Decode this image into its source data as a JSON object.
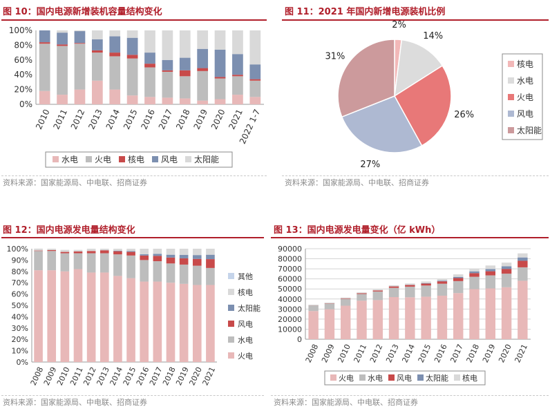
{
  "colors": {
    "title": "#b01e2a",
    "source": "#8a8a8a",
    "hydro": "#bdbdbd",
    "thermal": "#e8b8b8",
    "nuclear": "#c84a4a",
    "wind": "#7c8fb0",
    "solar": "#d9d9d9",
    "other": "#c5d4ea"
  },
  "charts": [
    {
      "title": "图 10：国内电源新增装机容量结构变化",
      "source": "资料来源：国家能源局、中电联、招商证券"
    },
    {
      "title": "图 11：2021 年国内新增电源装机比例",
      "source": "资料来源：国家能源局、中电联、招商证券"
    },
    {
      "title": "图 12：国内电源发电量结构变化",
      "source": "资料来源：国家能源局、中电联、招商证券"
    },
    {
      "title": "图 13：国内电源发电量变化（亿 kWh）",
      "source": "资料来源：国家能源局、中电联、招商证券"
    }
  ],
  "chart_data": [
    {
      "type": "bar",
      "stacked": true,
      "categories": [
        "2010",
        "2011",
        "2012",
        "2013",
        "2014",
        "2015",
        "2016",
        "2017",
        "2018",
        "2019",
        "2020",
        "2021",
        "2022 1-7"
      ],
      "ylim": [
        0,
        100
      ],
      "yticks": [
        "0%",
        "20%",
        "40%",
        "60%",
        "80%",
        "100%"
      ],
      "legend_position": "bottom",
      "series": [
        {
          "name": "水电",
          "color": "#e8b8b8",
          "values": [
            18,
            13,
            20,
            32,
            20,
            12,
            10,
            9,
            8,
            5,
            7,
            13,
            10
          ]
        },
        {
          "name": "火电",
          "color": "#bdbdbd",
          "values": [
            64,
            66,
            62,
            38,
            45,
            50,
            40,
            35,
            30,
            40,
            28,
            25,
            22
          ]
        },
        {
          "name": "核电",
          "color": "#c84a4a",
          "values": [
            2,
            2,
            1,
            3,
            5,
            5,
            5,
            2,
            8,
            4,
            2,
            2,
            2
          ]
        },
        {
          "name": "风电",
          "color": "#7c8fb0",
          "values": [
            16,
            16,
            16,
            15,
            22,
            23,
            15,
            14,
            17,
            26,
            37,
            28,
            20
          ]
        },
        {
          "name": "太阳能",
          "color": "#d9d9d9",
          "values": [
            0,
            3,
            1,
            12,
            8,
            10,
            30,
            40,
            37,
            25,
            26,
            32,
            46
          ]
        }
      ]
    },
    {
      "type": "pie",
      "legend_position": "right",
      "slices": [
        {
          "name": "核电",
          "value": 2,
          "label": "2%",
          "color": "#f2b8b8"
        },
        {
          "name": "水电",
          "value": 14,
          "label": "14%",
          "color": "#dcdcdc"
        },
        {
          "name": "火电",
          "value": 26,
          "label": "26%",
          "color": "#e87878"
        },
        {
          "name": "风电",
          "value": 27,
          "label": "27%",
          "color": "#aeb9d2"
        },
        {
          "name": "太阳能",
          "value": 31,
          "label": "31%",
          "color": "#cc9a9c"
        }
      ]
    },
    {
      "type": "bar",
      "stacked": true,
      "categories": [
        "2008",
        "2009",
        "2010",
        "2011",
        "2012",
        "2013",
        "2014",
        "2015",
        "2016",
        "2017",
        "2018",
        "2019",
        "2020",
        "2021"
      ],
      "ylim": [
        0,
        100
      ],
      "yticks": [
        "0%",
        "10%",
        "20%",
        "30%",
        "40%",
        "50%",
        "60%",
        "70%",
        "80%",
        "90%",
        "100%"
      ],
      "legend_position": "right",
      "series": [
        {
          "name": "火电",
          "color": "#e8b8b8",
          "values": [
            81,
            81,
            80,
            82,
            79,
            79,
            76,
            74,
            71,
            71,
            70,
            69,
            68,
            68
          ]
        },
        {
          "name": "水电",
          "color": "#bdbdbd",
          "values": [
            17,
            17,
            16,
            14,
            17,
            17,
            19,
            20,
            19,
            18,
            17,
            17,
            17,
            15
          ]
        },
        {
          "name": "风电",
          "color": "#c84a4a",
          "values": [
            0.4,
            0.8,
            1.2,
            1.6,
            2,
            2.6,
            2.8,
            3.2,
            4,
            4.7,
            5.2,
            5.5,
            6,
            7.8
          ]
        },
        {
          "name": "太阳能",
          "color": "#7c8fb0",
          "values": [
            0,
            0,
            0,
            0,
            0,
            0.1,
            0.4,
            0.7,
            1.1,
            1.8,
            2.5,
            3,
            3.4,
            3.9
          ]
        },
        {
          "name": "核电",
          "color": "#d9d9d9",
          "values": [
            1.7,
            1.2,
            1.8,
            1.4,
            2,
            1.3,
            1.8,
            2.1,
            4.9,
            4.5,
            5.3,
            5.5,
            5.6,
            5.3
          ]
        },
        {
          "name": "其他",
          "color": "#c5d4ea",
          "values": [
            0,
            0,
            0,
            0,
            0,
            0,
            0,
            0,
            0,
            0,
            0,
            0,
            0,
            0
          ]
        }
      ]
    },
    {
      "type": "bar",
      "stacked": true,
      "categories": [
        "2008",
        "2009",
        "2010",
        "2011",
        "2012",
        "2013",
        "2014",
        "2015",
        "2016",
        "2017",
        "2018",
        "2019",
        "2020",
        "2021"
      ],
      "ylim": [
        0,
        90000
      ],
      "yticks": [
        "0",
        "10000",
        "20000",
        "30000",
        "40000",
        "50000",
        "60000",
        "70000",
        "80000",
        "90000"
      ],
      "legend_position": "bottom",
      "series": [
        {
          "name": "火电",
          "color": "#e8b8b8",
          "values": [
            28000,
            29800,
            33300,
            38300,
            38900,
            41900,
            41700,
            42300,
            43300,
            45900,
            49800,
            50500,
            51700,
            58100
          ]
        },
        {
          "name": "水电",
          "color": "#bdbdbd",
          "values": [
            5600,
            5700,
            6900,
            6700,
            8600,
            9200,
            10600,
            11100,
            11900,
            11900,
            12300,
            13000,
            13500,
            13400
          ]
        },
        {
          "name": "风电",
          "color": "#c84a4a",
          "values": [
            130,
            280,
            500,
            710,
            960,
            1400,
            1600,
            1900,
            2400,
            3000,
            3600,
            4100,
            4700,
            6500
          ]
        },
        {
          "name": "太阳能",
          "color": "#7c8fb0",
          "values": [
            0,
            0,
            0,
            0,
            0,
            80,
            230,
            390,
            660,
            1200,
            1800,
            2200,
            2600,
            3300
          ]
        },
        {
          "name": "核电",
          "color": "#d9d9d9",
          "values": [
            690,
            700,
            740,
            860,
            980,
            1100,
            1300,
            1700,
            2100,
            2500,
            2900,
            3500,
            3700,
            4100
          ]
        }
      ]
    }
  ]
}
